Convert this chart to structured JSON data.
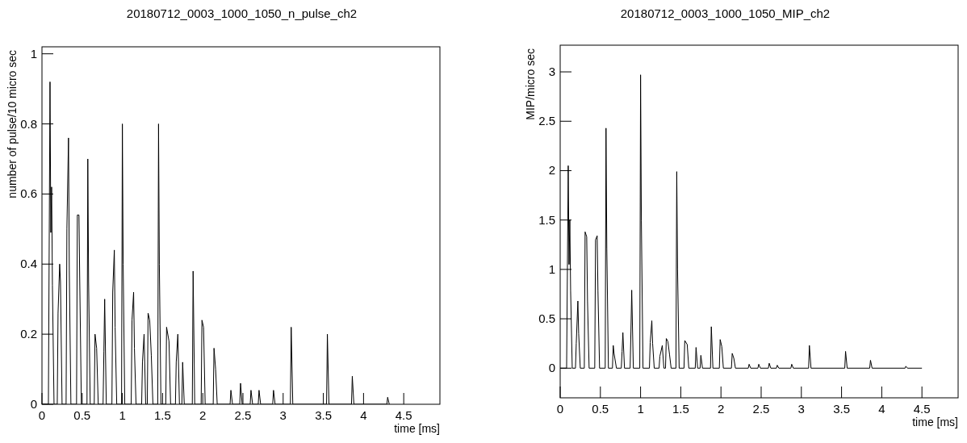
{
  "chart_data": [
    {
      "type": "line",
      "title": "20180712_0003_1000_1050_n_pulse_ch2",
      "xlabel": "time [ms]",
      "ylabel": "number of pulse/10 micro sec",
      "xlim": [
        0,
        4.95
      ],
      "ylim": [
        0,
        1.02
      ],
      "xticks": [
        0,
        0.5,
        1,
        1.5,
        2,
        2.5,
        3,
        3.5,
        4,
        4.5
      ],
      "yticks": [
        0,
        0.2,
        0.4,
        0.6,
        0.8,
        1
      ],
      "series": [
        {
          "color": "#000000",
          "x": [
            0,
            0.08,
            0.1,
            0.11,
            0.12,
            0.13,
            0.15,
            0.19,
            0.2,
            0.22,
            0.23,
            0.25,
            0.3,
            0.31,
            0.33,
            0.34,
            0.36,
            0.43,
            0.44,
            0.46,
            0.47,
            0.49,
            0.56,
            0.57,
            0.58,
            0.6,
            0.65,
            0.66,
            0.68,
            0.7,
            0.76,
            0.77,
            0.78,
            0.8,
            0.87,
            0.88,
            0.9,
            0.91,
            0.93,
            0.99,
            1.0,
            1.01,
            1.03,
            1.11,
            1.12,
            1.14,
            1.15,
            1.17,
            1.24,
            1.25,
            1.27,
            1.29,
            1.31,
            1.32,
            1.34,
            1.36,
            1.38,
            1.44,
            1.45,
            1.46,
            1.48,
            1.54,
            1.55,
            1.58,
            1.6,
            1.66,
            1.67,
            1.69,
            1.71,
            1.74,
            1.75,
            1.77,
            1.87,
            1.88,
            1.9,
            1.98,
            1.99,
            2.01,
            2.03,
            2.13,
            2.14,
            2.16,
            2.18,
            2.34,
            2.35,
            2.37,
            2.46,
            2.47,
            2.49,
            2.59,
            2.6,
            2.62,
            2.69,
            2.7,
            2.72,
            2.87,
            2.88,
            2.9,
            3.09,
            3.1,
            3.12,
            3.54,
            3.55,
            3.57,
            3.85,
            3.86,
            3.88,
            4.29,
            4.3,
            4.32
          ],
          "values": [
            0,
            0,
            0.92,
            0.49,
            0.62,
            0.34,
            0,
            0,
            0.26,
            0.4,
            0.35,
            0,
            0,
            0.5,
            0.76,
            0.38,
            0,
            0,
            0.54,
            0.54,
            0.35,
            0,
            0,
            0.7,
            0.35,
            0,
            0,
            0.2,
            0.16,
            0,
            0,
            0.15,
            0.3,
            0,
            0,
            0.32,
            0.44,
            0.22,
            0,
            0,
            0.8,
            0.4,
            0,
            0,
            0.24,
            0.32,
            0.16,
            0,
            0,
            0.12,
            0.2,
            0,
            0,
            0.26,
            0.24,
            0.14,
            0,
            0,
            0.8,
            0.4,
            0,
            0,
            0.22,
            0.18,
            0,
            0,
            0.12,
            0.2,
            0,
            0,
            0.12,
            0,
            0,
            0.38,
            0,
            0,
            0.24,
            0.22,
            0,
            0,
            0.16,
            0.1,
            0,
            0,
            0.04,
            0,
            0,
            0.06,
            0,
            0,
            0.04,
            0,
            0,
            0.04,
            0,
            0,
            0.04,
            0,
            0,
            0.22,
            0,
            0,
            0.2,
            0,
            0,
            0.08,
            0,
            0,
            0.02,
            0
          ]
        }
      ]
    },
    {
      "type": "line",
      "title": "20180712_0003_1000_1050_MIP_ch2",
      "xlabel": "time [ms]",
      "ylabel": "MIP/micro sec",
      "xlim": [
        0,
        4.95
      ],
      "ylim": [
        -0.3,
        3.27
      ],
      "xticks": [
        0,
        0.5,
        1,
        1.5,
        2,
        2.5,
        3,
        3.5,
        4,
        4.5
      ],
      "yticks": [
        0,
        0.5,
        1,
        1.5,
        2,
        2.5,
        3
      ],
      "series": [
        {
          "color": "#000000",
          "x": [
            0,
            0.08,
            0.1,
            0.11,
            0.12,
            0.13,
            0.15,
            0.19,
            0.2,
            0.22,
            0.23,
            0.25,
            0.3,
            0.31,
            0.33,
            0.34,
            0.36,
            0.43,
            0.44,
            0.46,
            0.47,
            0.49,
            0.56,
            0.57,
            0.58,
            0.6,
            0.65,
            0.66,
            0.67,
            0.7,
            0.76,
            0.77,
            0.78,
            0.8,
            0.87,
            0.88,
            0.89,
            0.91,
            0.99,
            1.0,
            1.01,
            1.03,
            1.11,
            1.12,
            1.14,
            1.15,
            1.17,
            1.23,
            1.24,
            1.27,
            1.29,
            1.31,
            1.32,
            1.34,
            1.36,
            1.38,
            1.44,
            1.45,
            1.46,
            1.48,
            1.54,
            1.55,
            1.58,
            1.6,
            1.68,
            1.69,
            1.71,
            1.74,
            1.75,
            1.77,
            1.87,
            1.88,
            1.9,
            1.98,
            1.99,
            2.01,
            2.03,
            2.13,
            2.14,
            2.16,
            2.18,
            2.34,
            2.35,
            2.37,
            2.46,
            2.47,
            2.49,
            2.59,
            2.6,
            2.62,
            2.69,
            2.7,
            2.72,
            2.87,
            2.88,
            2.9,
            3.09,
            3.1,
            3.12,
            3.54,
            3.55,
            3.57,
            3.85,
            3.86,
            3.88,
            4.29,
            4.3,
            4.32,
            4.5
          ],
          "values": [
            0,
            0,
            2.05,
            1.05,
            1.5,
            0.78,
            0,
            0,
            0.25,
            0.68,
            0.35,
            0,
            0,
            1.38,
            1.33,
            0.68,
            0,
            0,
            1.3,
            1.34,
            0.78,
            0,
            0,
            2.43,
            1.21,
            0,
            0,
            0.23,
            0.15,
            0,
            0,
            0.17,
            0.36,
            0,
            0,
            0.37,
            0.79,
            0,
            0,
            2.97,
            1.49,
            0,
            0,
            0.26,
            0.48,
            0.25,
            0,
            0,
            0.12,
            0.23,
            0,
            0,
            0.3,
            0.27,
            0.14,
            0,
            0,
            1.99,
            1,
            0,
            0,
            0.28,
            0.24,
            0,
            0,
            0.21,
            0,
            0,
            0.13,
            0,
            0,
            0.42,
            0,
            0,
            0.29,
            0.22,
            0,
            0,
            0.15,
            0.1,
            0,
            0,
            0.04,
            0,
            0,
            0.04,
            0,
            0,
            0.05,
            0,
            0,
            0.03,
            0,
            0,
            0.04,
            0,
            0,
            0.23,
            0,
            0,
            0.17,
            0,
            0,
            0.08,
            0,
            0,
            0.02,
            0,
            0
          ]
        }
      ]
    }
  ]
}
